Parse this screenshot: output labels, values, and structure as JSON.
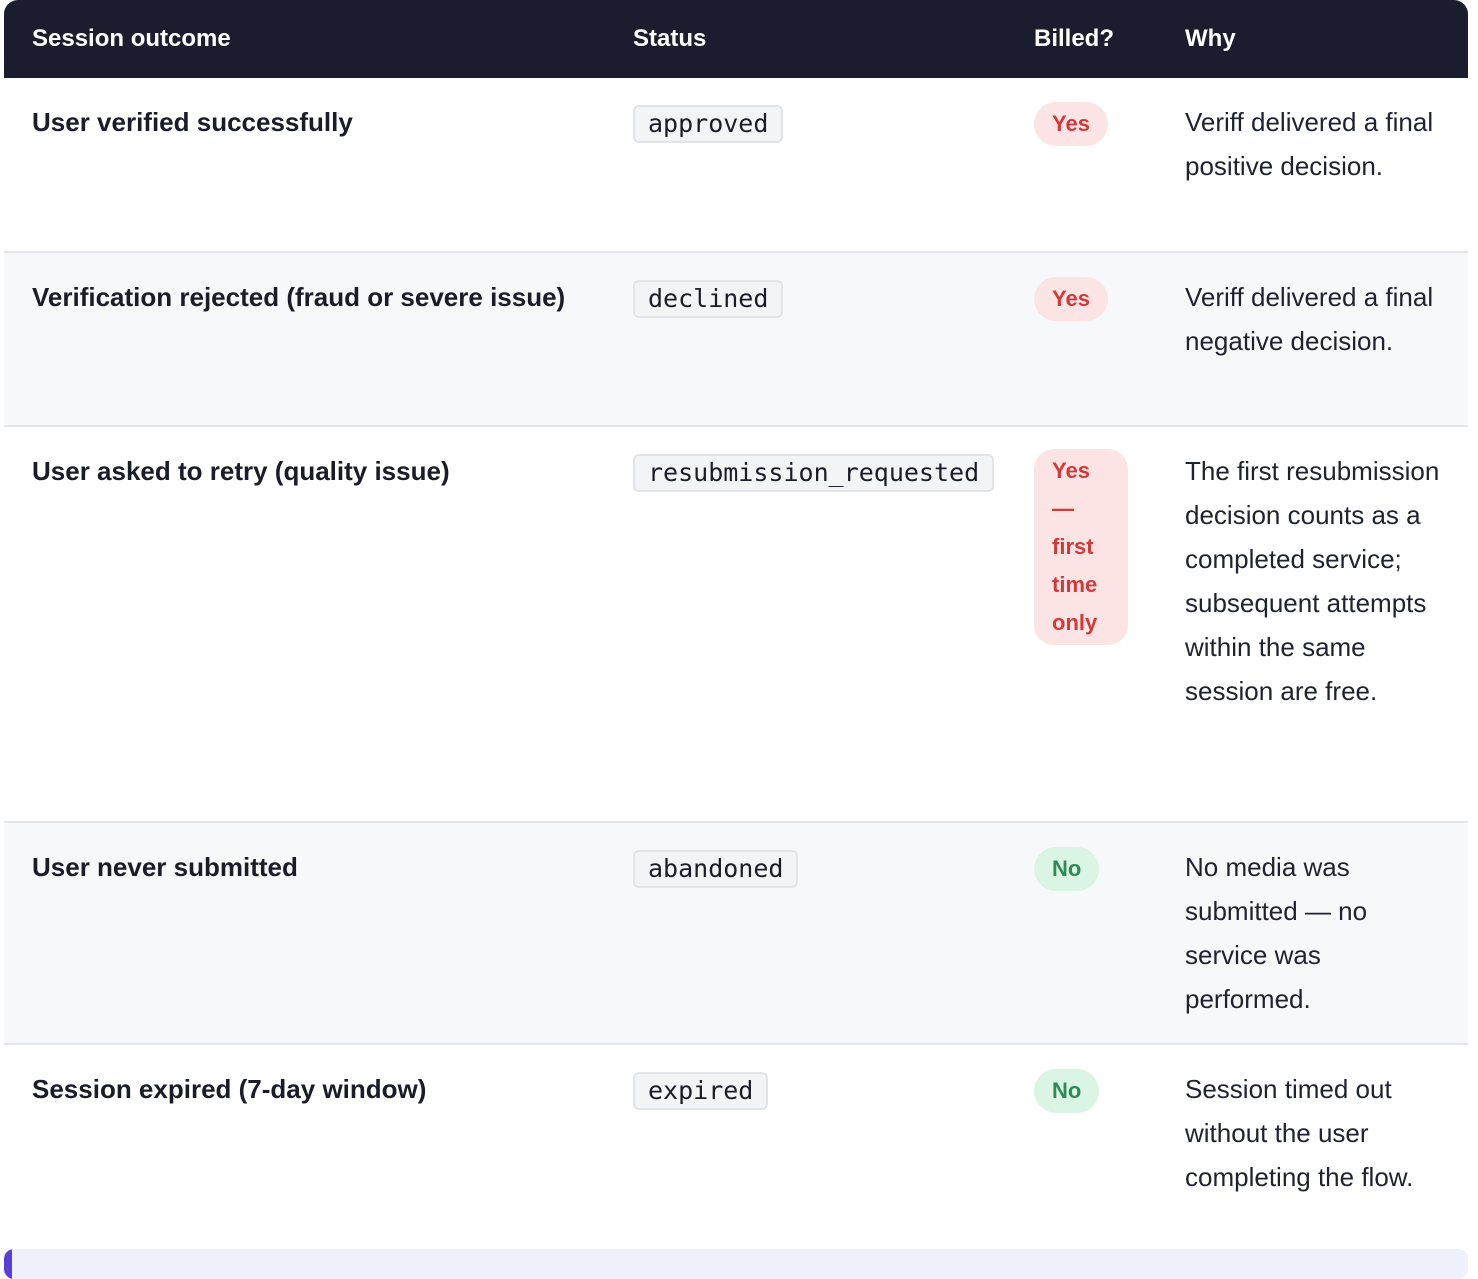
{
  "table": {
    "headers": [
      "Session outcome",
      "Status",
      "Billed?",
      "Why"
    ],
    "rows": [
      {
        "outcome": "User verified successfully",
        "status": "approved",
        "billed": "Yes",
        "why": "Veriff delivered a final positive decision."
      },
      {
        "outcome": "Verification rejected (fraud or severe issue)",
        "status": "declined",
        "billed": "Yes",
        "why": "Veriff delivered a final negative decision."
      },
      {
        "outcome": "User asked to retry (quality issue)",
        "status": "resubmission_requested",
        "billed": "Yes — first time only",
        "why": "The first resubmission decision counts as a completed service; subsequent attempts within the same session are free."
      },
      {
        "outcome": "User never submitted",
        "status": "abandoned",
        "billed": "No",
        "why": "No media was submitted — no service was performed."
      },
      {
        "outcome": "Session expired (7-day window)",
        "status": "expired",
        "billed": "No",
        "why": "Session timed out without the user completing the flow."
      }
    ]
  },
  "colors": {
    "header_bg": "#1b1c2e",
    "billed_yes": "#d23a3a",
    "billed_no": "#2e8a57",
    "callout_accent": "#5a3fd9"
  }
}
